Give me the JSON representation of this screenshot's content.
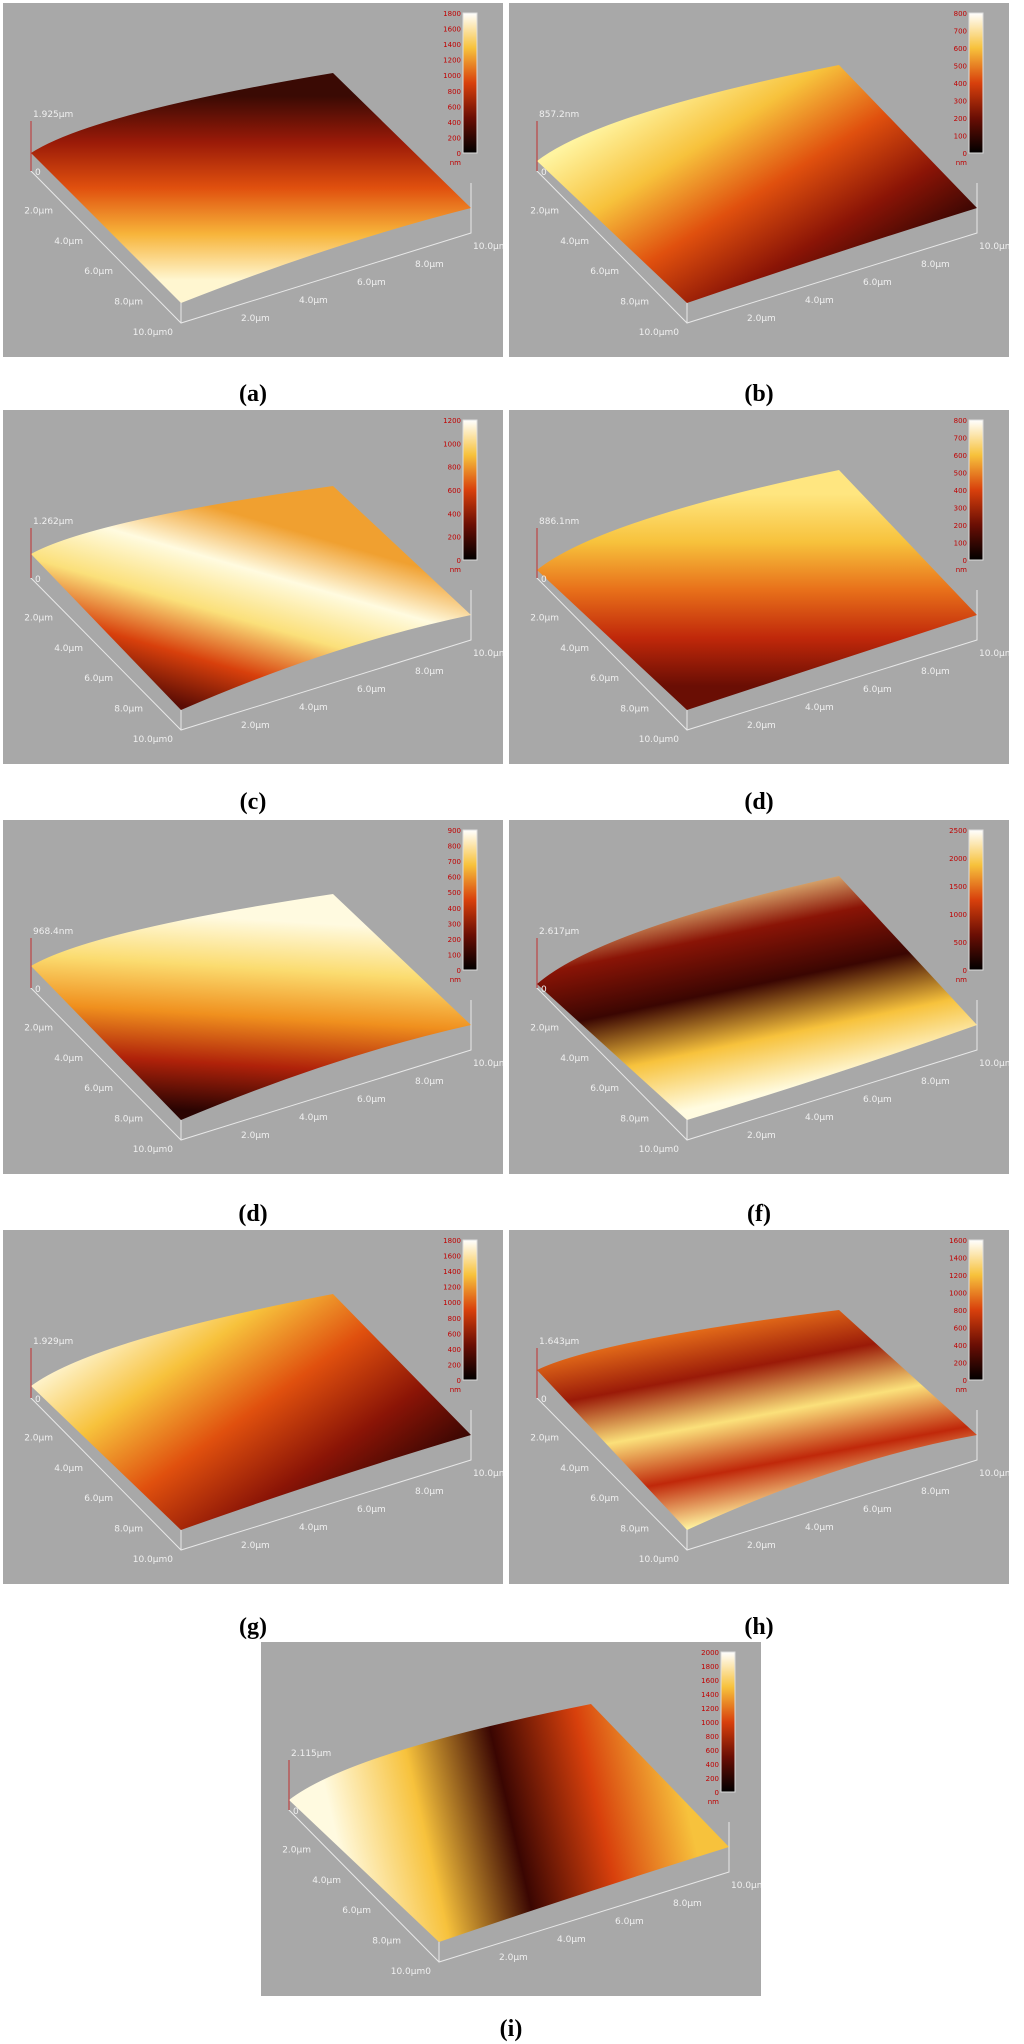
{
  "panels": [
    {
      "label": "(a)",
      "z_max": "1.925µm",
      "z_zero": "0",
      "y_axis": [
        "2.0µm",
        "4.0µm",
        "6.0µm",
        "8.0µm",
        "10.0µm0"
      ],
      "x_axis": [
        "2.0µm",
        "4.0µm",
        "6.0µm",
        "8.0µm",
        "10.0µm"
      ],
      "colorbar": [
        0,
        200,
        400,
        600,
        800,
        1000,
        1200,
        1400,
        1600,
        1800
      ],
      "colorbar_unit": "nm"
    },
    {
      "label": "(b)",
      "z_max": "857.2nm",
      "z_zero": "0",
      "y_axis": [
        "2.0µm",
        "4.0µm",
        "6.0µm",
        "8.0µm",
        "10.0µm0"
      ],
      "x_axis": [
        "2.0µm",
        "4.0µm",
        "6.0µm",
        "8.0µm",
        "10.0µm"
      ],
      "colorbar": [
        0,
        100,
        200,
        300,
        400,
        500,
        600,
        700,
        800
      ],
      "colorbar_unit": "nm"
    },
    {
      "label": "(c)",
      "z_max": "1.262µm",
      "z_zero": "0",
      "y_axis": [
        "2.0µm",
        "4.0µm",
        "6.0µm",
        "8.0µm",
        "10.0µm0"
      ],
      "x_axis": [
        "2.0µm",
        "4.0µm",
        "6.0µm",
        "8.0µm",
        "10.0µm"
      ],
      "colorbar": [
        0,
        200,
        400,
        600,
        800,
        1000,
        1200
      ],
      "colorbar_unit": "nm"
    },
    {
      "label": "(d)",
      "z_max": "886.1nm",
      "z_zero": "0",
      "y_axis": [
        "2.0µm",
        "4.0µm",
        "6.0µm",
        "8.0µm",
        "10.0µm0"
      ],
      "x_axis": [
        "2.0µm",
        "4.0µm",
        "6.0µm",
        "8.0µm",
        "10.0µm"
      ],
      "colorbar": [
        0,
        100,
        200,
        300,
        400,
        500,
        600,
        700,
        800
      ],
      "colorbar_unit": "nm"
    },
    {
      "label": "(d)",
      "z_max": "968.4nm",
      "z_zero": "0",
      "y_axis": [
        "2.0µm",
        "4.0µm",
        "6.0µm",
        "8.0µm",
        "10.0µm0"
      ],
      "x_axis": [
        "2.0µm",
        "4.0µm",
        "6.0µm",
        "8.0µm",
        "10.0µm"
      ],
      "colorbar": [
        0,
        100,
        200,
        300,
        400,
        500,
        600,
        700,
        800,
        900
      ],
      "colorbar_unit": "nm"
    },
    {
      "label": "(f)",
      "z_max": "2.617µm",
      "z_zero": "0",
      "y_axis": [
        "2.0µm",
        "4.0µm",
        "6.0µm",
        "8.0µm",
        "10.0µm0"
      ],
      "x_axis": [
        "2.0µm",
        "4.0µm",
        "6.0µm",
        "8.0µm",
        "10.0µm"
      ],
      "colorbar": [
        0,
        500,
        1000,
        1500,
        2000,
        2500
      ],
      "colorbar_unit": "nm"
    },
    {
      "label": "(g)",
      "z_max": "1.929µm",
      "z_zero": "0",
      "y_axis": [
        "2.0µm",
        "4.0µm",
        "6.0µm",
        "8.0µm",
        "10.0µm0"
      ],
      "x_axis": [
        "2.0µm",
        "4.0µm",
        "6.0µm",
        "8.0µm",
        "10.0µm"
      ],
      "colorbar": [
        0,
        200,
        400,
        600,
        800,
        1000,
        1200,
        1400,
        1600,
        1800
      ],
      "colorbar_unit": "nm"
    },
    {
      "label": "(h)",
      "z_max": "1.643µm",
      "z_zero": "0",
      "y_axis": [
        "2.0µm",
        "4.0µm",
        "6.0µm",
        "8.0µm",
        "10.0µm0"
      ],
      "x_axis": [
        "2.0µm",
        "4.0µm",
        "6.0µm",
        "8.0µm",
        "10.0µm"
      ],
      "colorbar": [
        0,
        200,
        400,
        600,
        800,
        1000,
        1200,
        1400,
        1600
      ],
      "colorbar_unit": "nm"
    },
    {
      "label": "(i)",
      "z_max": "2.115µm",
      "z_zero": "0",
      "y_axis": [
        "2.0µm",
        "4.0µm",
        "6.0µm",
        "8.0µm",
        "10.0µm0"
      ],
      "x_axis": [
        "2.0µm",
        "4.0µm",
        "6.0µm",
        "8.0µm",
        "10.0µm"
      ],
      "colorbar": [
        0,
        200,
        400,
        600,
        800,
        1000,
        1200,
        1400,
        1600,
        1800,
        2000
      ],
      "colorbar_unit": "nm"
    }
  ]
}
